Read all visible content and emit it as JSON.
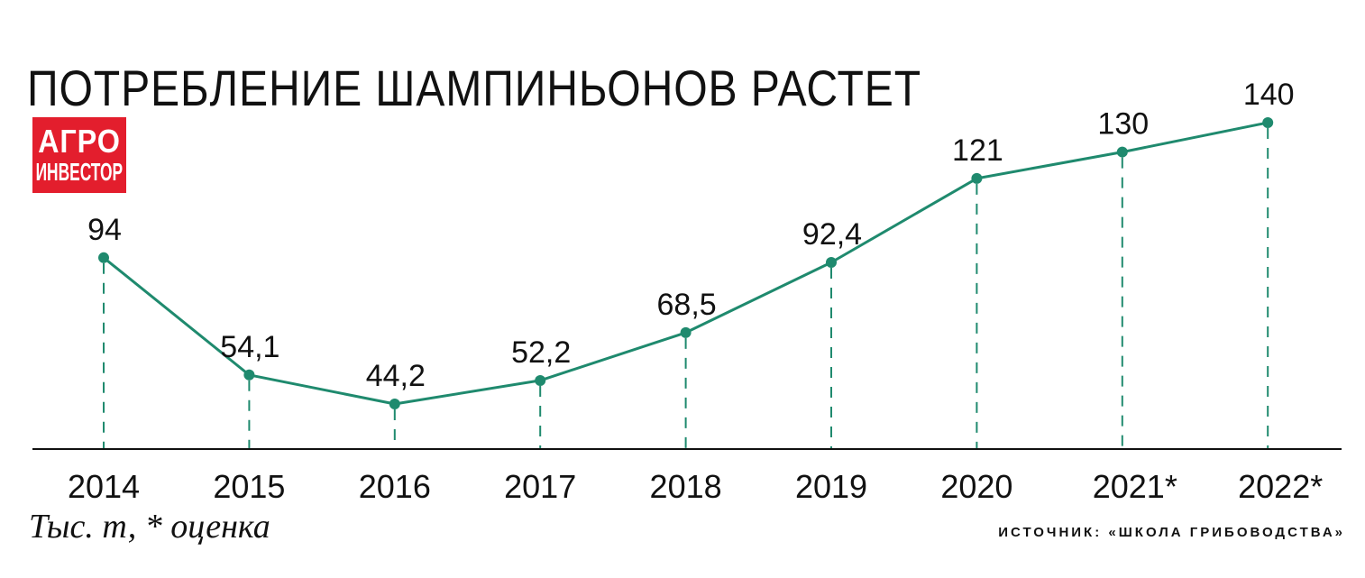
{
  "header": {
    "title": "ПОТРЕБЛЕНИЕ ШАМПИНЬОНОВ РАСТЕТ",
    "logo_line1": "АГРО",
    "logo_line2": "ИНВЕСТОР"
  },
  "footer": {
    "unit_note": "Тыс. т, * оценка",
    "source": "ИСТОЧНИК: «ШКОЛА ГРИБОВОДСТВА»"
  },
  "colors": {
    "line": "#1f8a6e",
    "logo_bg": "#e31e2d",
    "axis": "#111111"
  },
  "chart_data": {
    "type": "line",
    "title": "ПОТРЕБЛЕНИЕ ШАМПИНЬОНОВ РАСТЕТ",
    "xlabel": "",
    "ylabel": "",
    "categories": [
      "2014",
      "2015",
      "2016",
      "2017",
      "2018",
      "2019",
      "2020",
      "2021*",
      "2022*"
    ],
    "values": [
      94,
      54.1,
      44.2,
      52.2,
      68.5,
      92.4,
      121,
      130,
      140
    ],
    "labels": [
      "94",
      "54,1",
      "44,2",
      "52,2",
      "68,5",
      "92,4",
      "121",
      "130",
      "140"
    ],
    "ylim": [
      28,
      148
    ],
    "grid": false,
    "legend": "none"
  }
}
